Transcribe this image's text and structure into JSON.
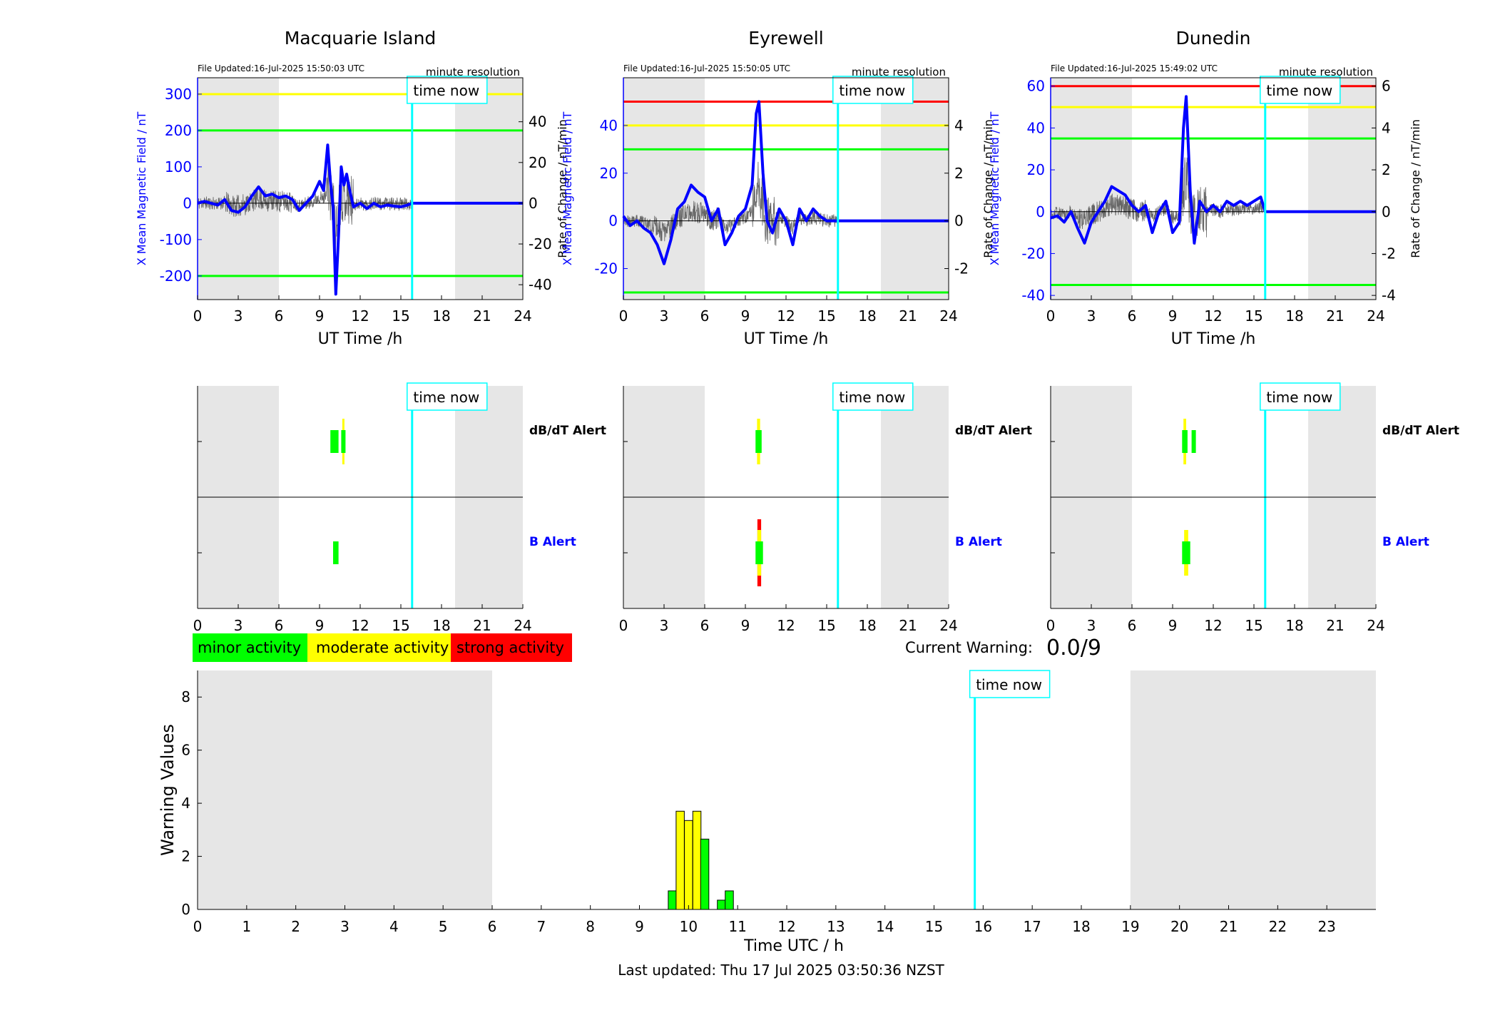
{
  "footer": "Last updated: Thu 17 Jul 2025 03:50:36 NZST",
  "legend": {
    "minor": "minor activity",
    "moderate": "moderate activity",
    "strong": "strong activity"
  },
  "current_warning": {
    "label": "Current Warning:",
    "value": "0.0/9"
  },
  "time_now_label": "time now",
  "colors": {
    "minor": "#00ff00",
    "moderate": "#ffff00",
    "strong": "#ff0000",
    "time_now": "#00ffff",
    "series": "#0000ff",
    "night": "#e6e6e6"
  },
  "chart_data": [
    {
      "type": "line",
      "title": "Macquarie Island",
      "file_updated": "File Updated:16-Jul-2025 15:50:03 UTC",
      "resolution": "minute resolution",
      "xlabel": "UT Time /h",
      "ylabel": "X Mean Magnetic Field / nT",
      "y2label": "Rate of Change / nT/min",
      "xlim": [
        0,
        24
      ],
      "ylim": [
        -265,
        345
      ],
      "y2lim": [
        -47.3,
        61.6
      ],
      "xticks": [
        0,
        3,
        6,
        9,
        12,
        15,
        18,
        21,
        24
      ],
      "yticks": [
        -200,
        -100,
        0,
        100,
        200,
        300
      ],
      "y2ticks": [
        -40,
        -20,
        0,
        20,
        40
      ],
      "night": [
        [
          0,
          6
        ],
        [
          19,
          24
        ]
      ],
      "time_now": 15.83,
      "thresholds": [
        {
          "value": 300,
          "color": "yellow"
        },
        {
          "value": 200,
          "color": "green"
        },
        {
          "value": -200,
          "color": "green"
        }
      ],
      "series": [
        {
          "x": [
            0,
            0.5,
            1,
            1.5,
            2,
            2.5,
            3,
            3.5,
            4,
            4.5,
            5,
            5.5,
            6,
            6.5,
            7,
            7.5,
            8,
            8.5,
            9,
            9.3,
            9.6,
            9.8,
            10,
            10.2,
            10.4,
            10.6,
            10.8,
            11,
            11.2,
            11.5,
            12,
            12.5,
            13,
            13.5,
            14,
            14.5,
            15,
            15.5,
            15.83,
            24
          ],
          "y": [
            0,
            5,
            0,
            -5,
            10,
            -20,
            -25,
            -10,
            20,
            45,
            20,
            25,
            15,
            20,
            10,
            -20,
            0,
            20,
            60,
            35,
            160,
            60,
            -10,
            -250,
            -90,
            100,
            50,
            80,
            40,
            -10,
            0,
            -15,
            0,
            -10,
            -5,
            -8,
            -10,
            -5,
            0,
            0
          ]
        }
      ],
      "alerts": {
        "dbdt_label": "dB/dT Alert",
        "b_label": "B Alert",
        "dbdt": [
          {
            "start": 9.8,
            "end": 10.4,
            "level": "minor"
          },
          {
            "start": 10.6,
            "end": 10.8,
            "level": "moderate"
          }
        ],
        "b": [
          {
            "start": 10.0,
            "end": 10.4,
            "level": "minor"
          }
        ]
      }
    },
    {
      "type": "line",
      "title": "Eyrewell",
      "file_updated": "File Updated:16-Jul-2025 15:50:05 UTC",
      "resolution": "minute resolution",
      "xlabel": "UT Time /h",
      "ylabel": "X Mean Magnetic Field / nT",
      "y2label": "Rate of Change / nT/min",
      "xlim": [
        0,
        24
      ],
      "ylim": [
        -33,
        60
      ],
      "y2lim": [
        -3.3,
        6.0
      ],
      "xticks": [
        0,
        3,
        6,
        9,
        12,
        15,
        18,
        21,
        24
      ],
      "yticks": [
        -20,
        0,
        20,
        40
      ],
      "y2ticks": [
        -2,
        0,
        2,
        4
      ],
      "night": [
        [
          0,
          6
        ],
        [
          19,
          24
        ]
      ],
      "time_now": 15.83,
      "thresholds": [
        {
          "value": 50,
          "color": "red"
        },
        {
          "value": 40,
          "color": "yellow"
        },
        {
          "value": 30,
          "color": "green"
        },
        {
          "value": -30,
          "color": "green"
        }
      ],
      "series": [
        {
          "x": [
            0,
            0.5,
            1,
            1.5,
            2,
            2.5,
            3,
            3.5,
            4,
            4.5,
            5,
            5.5,
            6,
            6.5,
            7,
            7.5,
            8,
            8.5,
            9,
            9.5,
            9.8,
            10,
            10.3,
            10.6,
            11,
            11.5,
            12,
            12.5,
            13,
            13.5,
            14,
            14.5,
            15,
            15.83,
            24
          ],
          "y": [
            2,
            -2,
            0,
            -3,
            -5,
            -10,
            -18,
            -8,
            5,
            8,
            15,
            12,
            10,
            0,
            5,
            -10,
            -5,
            2,
            5,
            15,
            45,
            50,
            20,
            0,
            -5,
            5,
            0,
            -10,
            5,
            0,
            5,
            2,
            0,
            0,
            0
          ]
        }
      ],
      "alerts": {
        "dbdt_label": "dB/dT Alert",
        "b_label": "B Alert",
        "dbdt": [
          {
            "start": 9.75,
            "end": 10.2,
            "level": "moderate"
          }
        ],
        "b": [
          {
            "start": 9.75,
            "end": 10.3,
            "level": "strong"
          }
        ]
      }
    },
    {
      "type": "line",
      "title": "Dunedin",
      "file_updated": "File Updated:16-Jul-2025 15:49:02 UTC",
      "resolution": "minute resolution",
      "xlabel": "UT Time /h",
      "ylabel": "X Mean Magnetic Field / nT",
      "y2label": "Rate of Change / nT/min",
      "xlim": [
        0,
        24
      ],
      "ylim": [
        -42,
        64
      ],
      "y2lim": [
        -4.2,
        6.4
      ],
      "xticks": [
        0,
        3,
        6,
        9,
        12,
        15,
        18,
        21,
        24
      ],
      "yticks": [
        -40,
        -20,
        0,
        20,
        40,
        60
      ],
      "y2ticks": [
        -4,
        -2,
        0,
        2,
        4,
        6
      ],
      "night": [
        [
          0,
          6
        ],
        [
          19,
          24
        ]
      ],
      "time_now": 15.83,
      "thresholds": [
        {
          "value": 60,
          "color": "red"
        },
        {
          "value": 50,
          "color": "yellow"
        },
        {
          "value": 35,
          "color": "green"
        },
        {
          "value": -35,
          "color": "green"
        }
      ],
      "series": [
        {
          "x": [
            0,
            0.5,
            1,
            1.5,
            2,
            2.5,
            3,
            3.5,
            4,
            4.5,
            5,
            5.5,
            6,
            6.5,
            7,
            7.5,
            8,
            8.5,
            9,
            9.5,
            9.8,
            10,
            10.3,
            10.6,
            11,
            11.5,
            12,
            12.5,
            13,
            13.5,
            14,
            14.5,
            15,
            15.5,
            15.83,
            24
          ],
          "y": [
            -3,
            -2,
            -5,
            0,
            -8,
            -15,
            -5,
            0,
            5,
            12,
            10,
            8,
            3,
            0,
            3,
            -10,
            0,
            5,
            -10,
            -5,
            40,
            55,
            10,
            -15,
            5,
            0,
            3,
            0,
            5,
            3,
            5,
            3,
            5,
            7,
            0,
            0
          ]
        }
      ],
      "alerts": {
        "dbdt_label": "dB/dT Alert",
        "b_label": "B Alert",
        "dbdt": [
          {
            "start": 9.7,
            "end": 10.1,
            "level": "moderate"
          },
          {
            "start": 10.4,
            "end": 10.7,
            "level": "minor"
          }
        ],
        "b": [
          {
            "start": 9.7,
            "end": 10.3,
            "level": "moderate"
          }
        ]
      }
    },
    {
      "type": "bar",
      "xlabel": "Time UTC / h",
      "ylabel": "Warning Values",
      "xlim": [
        0,
        24
      ],
      "ylim": [
        0,
        9
      ],
      "xticks": [
        0,
        1,
        2,
        3,
        4,
        5,
        6,
        7,
        8,
        9,
        10,
        11,
        12,
        13,
        14,
        15,
        16,
        17,
        18,
        19,
        20,
        21,
        22,
        23
      ],
      "yticks": [
        0,
        2,
        4,
        6,
        8
      ],
      "night": [
        [
          0,
          6
        ],
        [
          19,
          24
        ]
      ],
      "time_now": 15.83,
      "bar_width_h": 0.167,
      "bars": [
        {
          "x": 9.67,
          "value": 0.7,
          "level": "minor"
        },
        {
          "x": 9.83,
          "value": 3.7,
          "level": "moderate"
        },
        {
          "x": 10.0,
          "value": 3.35,
          "level": "moderate"
        },
        {
          "x": 10.17,
          "value": 3.7,
          "level": "moderate"
        },
        {
          "x": 10.33,
          "value": 2.65,
          "level": "minor"
        },
        {
          "x": 10.67,
          "value": 0.35,
          "level": "minor"
        },
        {
          "x": 10.83,
          "value": 0.7,
          "level": "minor"
        }
      ]
    }
  ]
}
